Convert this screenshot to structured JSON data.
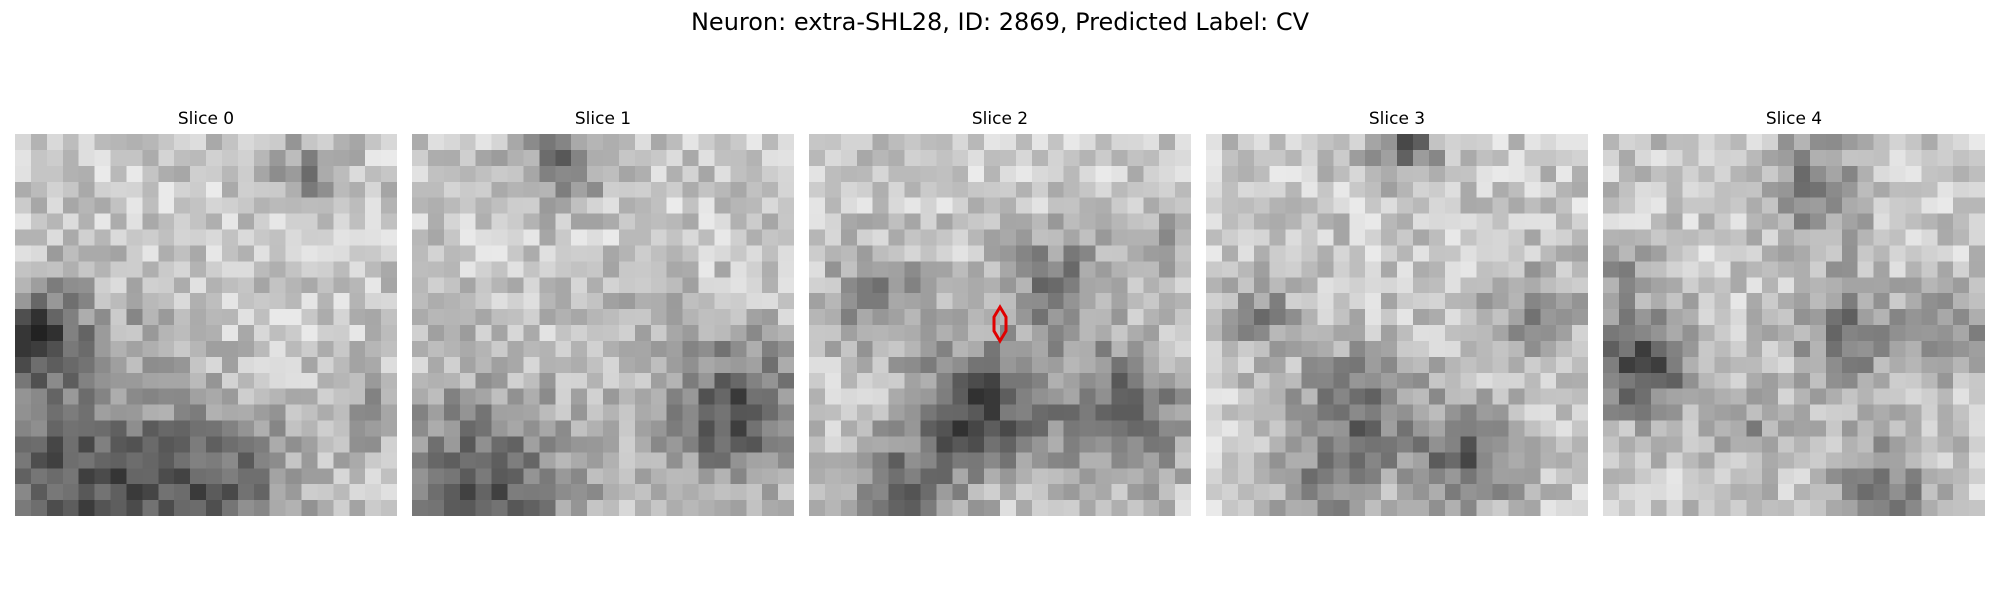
{
  "figure": {
    "title": "Neuron: extra-SHL28, ID: 2869, Predicted Label: CV"
  },
  "slices": [
    {
      "label": "Slice 0"
    },
    {
      "label": "Slice 1"
    },
    {
      "label": "Slice 2",
      "has_marker": true
    },
    {
      "label": "Slice 3"
    },
    {
      "label": "Slice 4"
    }
  ],
  "style": {
    "marker_color": "#e00000",
    "colormap": "grayscale"
  }
}
